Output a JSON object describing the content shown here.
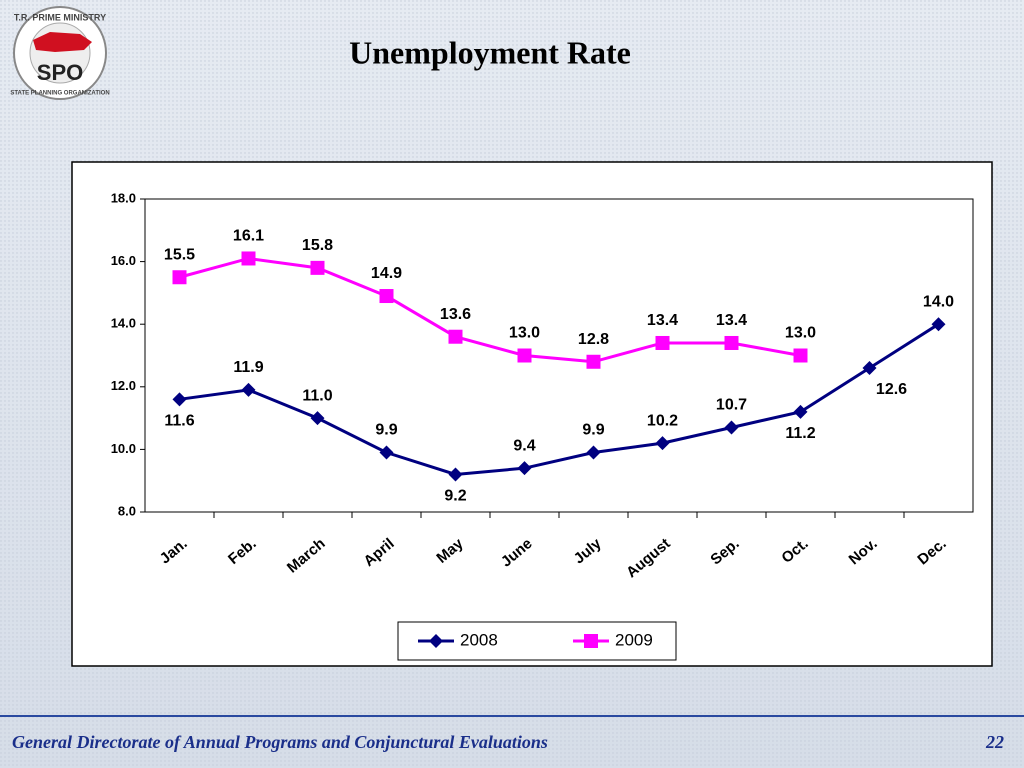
{
  "logo": {
    "top_text": "T.R. PRIME MINISTRY",
    "abbr": "SPO",
    "bottom_text": "STATE PLANNING ORGANIZATION"
  },
  "chart_data": {
    "type": "line",
    "title": "Unemployment Rate",
    "categories": [
      "Jan.",
      "Feb.",
      "March",
      "April",
      "May",
      "June",
      "July",
      "August",
      "Sep.",
      "Oct.",
      "Nov.",
      "Dec."
    ],
    "series": [
      {
        "name": "2008",
        "color": "#000080",
        "marker": "diamond",
        "values": [
          11.6,
          11.9,
          11.0,
          9.9,
          9.2,
          9.4,
          9.9,
          10.2,
          10.7,
          11.2,
          12.6,
          14.0
        ],
        "value_labels": [
          "11.6",
          "11.9",
          "11.0",
          "9.9",
          "9.2",
          "9.4",
          "9.9",
          "10.2",
          "10.7",
          "11.2",
          "12.6",
          "14.0"
        ]
      },
      {
        "name": "2009",
        "color": "#ff00ff",
        "marker": "square",
        "values": [
          15.5,
          16.1,
          15.8,
          14.9,
          13.6,
          13.0,
          12.8,
          13.4,
          13.4,
          13.0,
          null,
          null
        ],
        "value_labels": [
          "15.5",
          "16.1",
          "15.8",
          "14.9",
          "13.6",
          "13.0",
          "12.8",
          "13.4",
          "13.4",
          "13.0",
          null,
          null
        ]
      }
    ],
    "ylim": [
      8,
      18
    ],
    "yticks": [
      {
        "value": 8,
        "label": "8.0"
      },
      {
        "value": 10,
        "label": "10.0"
      },
      {
        "value": 12,
        "label": "12.0"
      },
      {
        "value": 14,
        "label": "14.0"
      },
      {
        "value": 16,
        "label": "16.0"
      },
      {
        "value": 18,
        "label": "18.0"
      }
    ],
    "grid": false,
    "legend": "bottom"
  },
  "footer": {
    "text": "General Directorate of Annual Programs and Conjunctural Evaluations",
    "page": "22"
  }
}
